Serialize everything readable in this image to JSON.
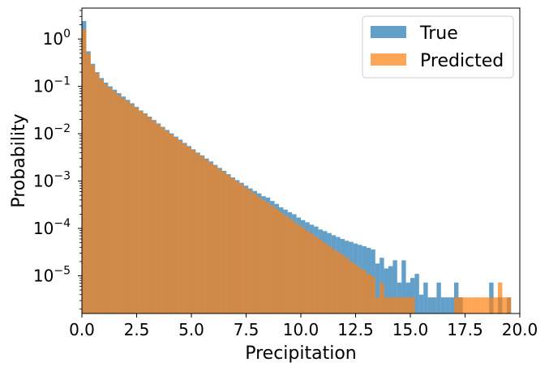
{
  "chart_data": {
    "type": "bar",
    "subtype": "overlapping-histogram",
    "xlabel": "Precipitation",
    "ylabel": "Probability",
    "xlim": [
      0,
      20
    ],
    "ylim": [
      1.6e-06,
      4.5
    ],
    "y_scale": "log",
    "grid": false,
    "legend_position": "top-right",
    "bin_width": 0.2,
    "x_ticks": [
      "0.0",
      "2.5",
      "5.0",
      "7.5",
      "10.0",
      "12.5",
      "15.0",
      "17.5",
      "20.0"
    ],
    "y_ticks": [
      {
        "value": 1e-05,
        "base": "10",
        "exp": "−5"
      },
      {
        "value": 0.0001,
        "base": "10",
        "exp": "−4"
      },
      {
        "value": 0.001,
        "base": "10",
        "exp": "−3"
      },
      {
        "value": 0.01,
        "base": "10",
        "exp": "−2"
      },
      {
        "value": 0.1,
        "base": "10",
        "exp": "−1"
      },
      {
        "value": 1,
        "base": "10",
        "exp": "0"
      }
    ],
    "series": [
      {
        "name": "True",
        "color": "#1f77b4",
        "opacity": 0.7,
        "bins": [
          [
            0.0,
            2.4
          ],
          [
            0.2,
            0.55
          ],
          [
            0.4,
            0.3
          ],
          [
            0.6,
            0.2
          ],
          [
            0.8,
            0.15
          ],
          [
            1.0,
            0.12
          ],
          [
            1.2,
            0.1
          ],
          [
            1.4,
            0.085
          ],
          [
            1.6,
            0.072
          ],
          [
            1.8,
            0.061
          ],
          [
            2.0,
            0.052
          ],
          [
            2.2,
            0.044
          ],
          [
            2.4,
            0.037
          ],
          [
            2.6,
            0.031
          ],
          [
            2.8,
            0.027
          ],
          [
            3.0,
            0.023
          ],
          [
            3.2,
            0.0195
          ],
          [
            3.4,
            0.0165
          ],
          [
            3.6,
            0.014
          ],
          [
            3.8,
            0.012
          ],
          [
            4.0,
            0.0102
          ],
          [
            4.2,
            0.0087
          ],
          [
            4.4,
            0.0075
          ],
          [
            4.6,
            0.0064
          ],
          [
            4.8,
            0.0055
          ],
          [
            5.0,
            0.0047
          ],
          [
            5.2,
            0.004
          ],
          [
            5.4,
            0.0035
          ],
          [
            5.6,
            0.003
          ],
          [
            5.8,
            0.0026
          ],
          [
            6.0,
            0.0022
          ],
          [
            6.2,
            0.0019
          ],
          [
            6.4,
            0.00165
          ],
          [
            6.6,
            0.0014
          ],
          [
            6.8,
            0.0012
          ],
          [
            7.0,
            0.00105
          ],
          [
            7.2,
            0.00092
          ],
          [
            7.4,
            0.0008
          ],
          [
            7.6,
            0.0007
          ],
          [
            7.8,
            0.00062
          ],
          [
            8.0,
            0.00055
          ],
          [
            8.2,
            0.00048
          ],
          [
            8.4,
            0.00045
          ],
          [
            8.6,
            0.00038
          ],
          [
            8.8,
            0.00033
          ],
          [
            9.0,
            0.00028
          ],
          [
            9.2,
            0.00025
          ],
          [
            9.4,
            0.00022
          ],
          [
            9.6,
            0.0002
          ],
          [
            9.8,
            0.00017
          ],
          [
            10.0,
            0.00015
          ],
          [
            10.2,
            0.000135
          ],
          [
            10.4,
            0.00012
          ],
          [
            10.6,
            0.00011
          ],
          [
            10.8,
            9.5e-05
          ],
          [
            11.0,
            8.8e-05
          ],
          [
            11.2,
            8e-05
          ],
          [
            11.4,
            7.2e-05
          ],
          [
            11.6,
            6.6e-05
          ],
          [
            11.8,
            6e-05
          ],
          [
            12.0,
            5.5e-05
          ],
          [
            12.2,
            5.2e-05
          ],
          [
            12.4,
            4.8e-05
          ],
          [
            12.6,
            4.5e-05
          ],
          [
            12.8,
            4.2e-05
          ],
          [
            13.0,
            3.9e-05
          ],
          [
            13.2,
            3.6e-05
          ],
          [
            13.4,
            1.82e-05
          ],
          [
            13.6,
            2.4e-05
          ],
          [
            13.8,
            1.43e-05
          ],
          [
            14.0,
            1.6e-05
          ],
          [
            14.2,
            2.13e-05
          ],
          [
            14.4,
            7.2e-06
          ],
          [
            14.6,
            2.12e-05
          ],
          [
            14.8,
            7.2e-06
          ],
          [
            15.0,
            9e-06
          ],
          [
            15.2,
            1.1e-05
          ],
          [
            15.4,
            4e-06
          ],
          [
            15.6,
            7.2e-06
          ],
          [
            15.8,
            3.5e-06
          ],
          [
            16.0,
            3.5e-06
          ],
          [
            16.2,
            7.2e-06
          ],
          [
            16.4,
            3.5e-06
          ],
          [
            16.6,
            3.5e-06
          ],
          [
            16.8,
            3.5e-06
          ],
          [
            17.0,
            7.2e-06
          ],
          [
            17.2,
            3.5e-06
          ],
          [
            18.6,
            7.2e-06
          ],
          [
            19.0,
            3.5e-06
          ],
          [
            19.4,
            3.5e-06
          ]
        ]
      },
      {
        "name": "Predicted",
        "color": "#ff7f0e",
        "opacity": 0.7,
        "bins": [
          [
            0.0,
            1.6
          ],
          [
            0.2,
            0.5
          ],
          [
            0.4,
            0.28
          ],
          [
            0.6,
            0.19
          ],
          [
            0.8,
            0.14
          ],
          [
            1.0,
            0.11
          ],
          [
            1.2,
            0.092
          ],
          [
            1.4,
            0.078
          ],
          [
            1.6,
            0.066
          ],
          [
            1.8,
            0.056
          ],
          [
            2.0,
            0.048
          ],
          [
            2.2,
            0.041
          ],
          [
            2.4,
            0.035
          ],
          [
            2.6,
            0.03
          ],
          [
            2.8,
            0.026
          ],
          [
            3.0,
            0.022
          ],
          [
            3.2,
            0.0185
          ],
          [
            3.4,
            0.0158
          ],
          [
            3.6,
            0.0134
          ],
          [
            3.8,
            0.0114
          ],
          [
            4.0,
            0.0097
          ],
          [
            4.2,
            0.0083
          ],
          [
            4.4,
            0.0071
          ],
          [
            4.6,
            0.0061
          ],
          [
            4.8,
            0.0052
          ],
          [
            5.0,
            0.0045
          ],
          [
            5.2,
            0.0038
          ],
          [
            5.4,
            0.0033
          ],
          [
            5.6,
            0.0028
          ],
          [
            5.8,
            0.0024
          ],
          [
            6.0,
            0.0021
          ],
          [
            6.2,
            0.0018
          ],
          [
            6.4,
            0.00155
          ],
          [
            6.6,
            0.00133
          ],
          [
            6.8,
            0.00114
          ],
          [
            7.0,
            0.00098
          ],
          [
            7.2,
            0.00085
          ],
          [
            7.4,
            0.00073
          ],
          [
            7.6,
            0.00063
          ],
          [
            7.8,
            0.00054
          ],
          [
            8.0,
            0.00046
          ],
          [
            8.2,
            0.0004
          ],
          [
            8.4,
            0.00035
          ],
          [
            8.6,
            0.0003
          ],
          [
            8.8,
            0.00026
          ],
          [
            9.0,
            0.00022
          ],
          [
            9.2,
            0.00019
          ],
          [
            9.4,
            0.000165
          ],
          [
            9.6,
            0.00014
          ],
          [
            9.8,
            0.00012
          ],
          [
            10.0,
            0.000105
          ],
          [
            10.2,
            9e-05
          ],
          [
            10.4,
            7.8e-05
          ],
          [
            10.6,
            6.7e-05
          ],
          [
            10.8,
            5.8e-05
          ],
          [
            11.0,
            5e-05
          ],
          [
            11.2,
            4.3e-05
          ],
          [
            11.4,
            3.7e-05
          ],
          [
            11.6,
            3.2e-05
          ],
          [
            11.8,
            2.8e-05
          ],
          [
            12.0,
            2.4e-05
          ],
          [
            12.2,
            2e-05
          ],
          [
            12.4,
            1.75e-05
          ],
          [
            12.6,
            1.5e-05
          ],
          [
            12.8,
            1.3e-05
          ],
          [
            13.0,
            1.1e-05
          ],
          [
            13.2,
            9.5e-06
          ],
          [
            13.4,
            3.5e-06
          ],
          [
            13.6,
            7e-06
          ],
          [
            13.8,
            3.5e-06
          ],
          [
            14.0,
            3.5e-06
          ],
          [
            14.2,
            3.5e-06
          ],
          [
            14.4,
            3.5e-06
          ],
          [
            14.6,
            3.5e-06
          ],
          [
            14.8,
            3.5e-06
          ],
          [
            15.0,
            3.5e-06
          ],
          [
            17.0,
            3.5e-06
          ],
          [
            17.2,
            3.5e-06
          ],
          [
            17.4,
            3.5e-06
          ],
          [
            17.6,
            3.5e-06
          ],
          [
            17.8,
            3.5e-06
          ],
          [
            18.0,
            3.5e-06
          ],
          [
            18.2,
            3.5e-06
          ],
          [
            18.4,
            3.5e-06
          ],
          [
            18.6,
            3.5e-06
          ],
          [
            18.8,
            3.5e-06
          ],
          [
            19.0,
            7.2e-06
          ],
          [
            19.2,
            3.5e-06
          ],
          [
            19.4,
            3.5e-06
          ]
        ]
      }
    ]
  }
}
